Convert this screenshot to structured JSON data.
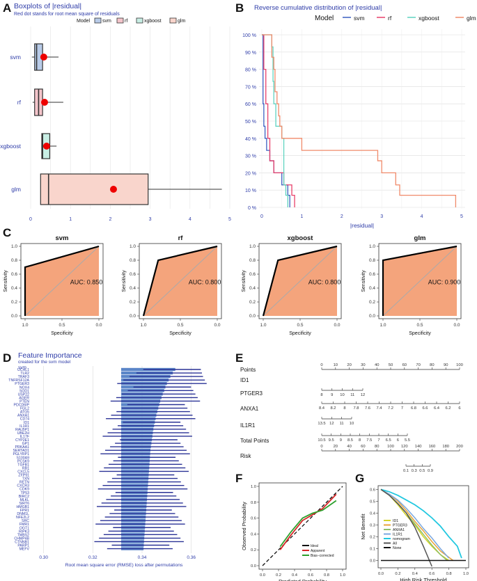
{
  "panel_letters": [
    "A",
    "B",
    "C",
    "D",
    "E",
    "F",
    "G"
  ],
  "colors": {
    "svm": "#3b5fc0",
    "rf": "#e8406a",
    "xgboost": "#5fd3c0",
    "glm": "#f08a6a",
    "accent": "#2e3ca8",
    "roc_fill": "#f4a47c"
  },
  "chart_data": [
    {
      "panel": "A",
      "type": "boxplot",
      "title": "Boxplots of |residual|",
      "subtitle": "Red dot stands for root mean square of residuals",
      "legend_title": "Model",
      "legend": [
        "svm",
        "rf",
        "xgboost",
        "glm"
      ],
      "categories": [
        "svm",
        "rf",
        "xgboost",
        "glm"
      ],
      "x_ticks": [
        "0",
        "1",
        "2",
        "3",
        "4",
        "5"
      ],
      "xlim": [
        0,
        5
      ],
      "boxes": [
        {
          "name": "svm",
          "min": 0.03,
          "q1": 0.1,
          "median": 0.15,
          "q3": 0.3,
          "max": 0.7,
          "rmse": 0.33,
          "fill": "#b8cbe8"
        },
        {
          "name": "rf",
          "min": 0.05,
          "q1": 0.1,
          "median": 0.2,
          "q3": 0.3,
          "max": 0.82,
          "rmse": 0.35,
          "fill": "#f4c5cb"
        },
        {
          "name": "xgboost",
          "min": 0.27,
          "q1": 0.28,
          "median": 0.3,
          "q3": 0.48,
          "max": 0.65,
          "rmse": 0.4,
          "fill": "#c8eee4"
        },
        {
          "name": "glm",
          "min": 0.25,
          "q1": 0.25,
          "median": 0.45,
          "q3": 2.95,
          "max": 4.8,
          "rmse": 2.08,
          "fill": "#f9d5cc"
        }
      ]
    },
    {
      "panel": "B",
      "type": "step",
      "title": "Reverse cumulative distribution of |residual|",
      "legend_title": "Model",
      "xlabel": "|residual|",
      "x_ticks": [
        "0",
        "1",
        "2",
        "3",
        "4",
        "5"
      ],
      "y_ticks": [
        "0 %",
        "10 %",
        "20 %",
        "30 %",
        "40 %",
        "50 %",
        "60 %",
        "70 %",
        "80 %",
        "90 %",
        "100 %"
      ],
      "xlim": [
        0,
        5
      ],
      "ylim": [
        0,
        100
      ],
      "series": [
        {
          "name": "svm",
          "x": [
            0,
            0.03,
            0.05,
            0.08,
            0.12,
            0.2,
            0.3,
            0.5,
            0.6,
            0.65,
            0.7
          ],
          "y": [
            100,
            60,
            47,
            40,
            33,
            27,
            20,
            13,
            13,
            7,
            0
          ]
        },
        {
          "name": "rf",
          "x": [
            0,
            0.05,
            0.1,
            0.15,
            0.2,
            0.3,
            0.4,
            0.55,
            0.65,
            0.75,
            0.82
          ],
          "y": [
            100,
            80,
            60,
            40,
            27,
            20,
            20,
            13,
            13,
            7,
            0
          ]
        },
        {
          "name": "xgboost",
          "x": [
            0,
            0.25,
            0.28,
            0.3,
            0.35,
            0.45,
            0.5,
            0.55,
            0.6,
            0.65
          ],
          "y": [
            100,
            93,
            73,
            60,
            47,
            47,
            40,
            13,
            7,
            0
          ]
        },
        {
          "name": "glm",
          "x": [
            0,
            0.25,
            0.3,
            0.33,
            0.38,
            0.42,
            0.45,
            0.5,
            1.0,
            2.9,
            3.0,
            3.35,
            3.45,
            4.75,
            4.85
          ],
          "y": [
            100,
            87,
            80,
            67,
            60,
            53,
            47,
            40,
            33,
            27,
            20,
            13,
            7,
            7,
            0
          ]
        }
      ]
    },
    {
      "panel": "C",
      "type": "roc",
      "ylabel": "Sensitivity",
      "xlabel": "Specificity",
      "x_ticks": [
        "1.0",
        "0.5",
        "0.0"
      ],
      "y_ticks": [
        "0.0",
        "0.2",
        "0.4",
        "0.6",
        "0.8",
        "1.0"
      ],
      "panels": [
        {
          "title": "svm",
          "auc": "AUC: 0.850",
          "points": [
            [
              1,
              0
            ],
            [
              1,
              0.7
            ],
            [
              0,
              1
            ]
          ]
        },
        {
          "title": "rf",
          "auc": "AUC: 0.800",
          "points": [
            [
              1,
              0
            ],
            [
              0.8,
              0.8
            ],
            [
              0,
              1
            ]
          ]
        },
        {
          "title": "xgboost",
          "auc": "AUC: 0.800",
          "points": [
            [
              1,
              0
            ],
            [
              0.8,
              0.8
            ],
            [
              0,
              1
            ]
          ]
        },
        {
          "title": "glm",
          "auc": "AUC: 0.900",
          "points": [
            [
              1,
              0
            ],
            [
              1,
              0.8
            ],
            [
              0,
              1
            ]
          ]
        }
      ]
    },
    {
      "panel": "D",
      "type": "bar",
      "title": "Feature Importance",
      "subtitle": "created for the svm model",
      "model_label": "svm",
      "xlabel": "Root mean square error (RMSE) loss after permutations",
      "x_ticks": [
        "0.30",
        "0.32",
        "0.34",
        "0.36"
      ],
      "xlim": [
        0.295,
        0.37
      ],
      "baseline": 0.3315,
      "features": [
        "UCHL1",
        "TLR2",
        "TRAF3",
        "TNFRSF12A",
        "PTGER3",
        "NOX4",
        "SOD1",
        "USP22",
        "AGER",
        "PTEN",
        "PDCD6IP",
        "FGL2",
        "ATG5",
        "ANXA1",
        "CD74",
        "ID1",
        "IL1R1",
        "RALBP1",
        "UBE2H",
        "IL17F",
        "CYP2E1",
        "GP1",
        "PRKAA1",
        "SERTAD1",
        "PGLYRP1",
        "S100A9",
        "PCSK9",
        "TGFB1",
        "RB1",
        "CXCL5",
        "ZFP91",
        "TXN",
        "RETN",
        "CXCR3",
        "CDK9",
        "TP53",
        "BIRC2",
        "MLKL",
        "SIRT6",
        "HMGB1",
        "FPR1",
        "DNM1L",
        "NFE2L2",
        "SRC",
        "FMR1",
        "OGT1",
        "RIPK3",
        "TMBS2",
        "CHMP4B",
        "CTNNB1",
        "PARP1",
        "MEFV"
      ],
      "values": [
        0.3535,
        0.3525,
        0.3515,
        0.3508,
        0.3501,
        0.3495,
        0.349,
        0.3484,
        0.3479,
        0.3474,
        0.347,
        0.3466,
        0.3462,
        0.3458,
        0.3455,
        0.3452,
        0.3449,
        0.3446,
        0.3444,
        0.3442,
        0.344,
        0.3438,
        0.3436,
        0.3434,
        0.3433,
        0.3432,
        0.3431,
        0.343,
        0.3429,
        0.3428,
        0.3427,
        0.3426,
        0.3425,
        0.3424,
        0.3423,
        0.3422,
        0.3421,
        0.342,
        0.3419,
        0.3418,
        0.3417,
        0.3416,
        0.3415,
        0.3414,
        0.3413,
        0.3412,
        0.3411,
        0.341,
        0.3409,
        0.3408,
        0.3407,
        0.3406
      ]
    },
    {
      "panel": "E",
      "type": "nomogram",
      "rows": [
        {
          "label": "Points",
          "ticks": [
            "0",
            "10",
            "20",
            "30",
            "40",
            "50",
            "60",
            "70",
            "80",
            "90",
            "100"
          ]
        },
        {
          "label": "ID1",
          "ticks": [
            "8",
            "9",
            "10",
            "11",
            "12"
          ]
        },
        {
          "label": "PTGER3",
          "ticks": [
            "8.4",
            "8.2",
            "8",
            "7.8",
            "7.6",
            "7.4",
            "7.2",
            "7",
            "6.8",
            "6.6",
            "6.4",
            "6.2",
            "6"
          ]
        },
        {
          "label": "ANXA1",
          "ticks": [
            "13.5",
            "12",
            "11",
            "10"
          ]
        },
        {
          "label": "IL1R1",
          "ticks": [
            "10.5",
            "9.5",
            "9",
            "8.5",
            "8",
            "7.5",
            "7",
            "6.5",
            "6",
            "5.5"
          ]
        },
        {
          "label": "Total Points",
          "ticks": [
            "0",
            "20",
            "40",
            "60",
            "80",
            "100",
            "120",
            "140",
            "160",
            "180",
            "200"
          ]
        },
        {
          "label": "Risk",
          "ticks": [
            "0.1",
            "0.3",
            "0.5",
            "0.9"
          ]
        }
      ]
    },
    {
      "panel": "F",
      "type": "line",
      "xlabel": "Predicted Probability",
      "ylabel": "Observed Probability",
      "x_ticks": [
        "0.0",
        "0.2",
        "0.4",
        "0.6",
        "0.8",
        "1.0"
      ],
      "y_ticks": [
        "0.0",
        "0.2",
        "0.4",
        "0.6",
        "0.8",
        "1.0"
      ],
      "xlim": [
        0,
        1
      ],
      "ylim": [
        0,
        1
      ],
      "legend": [
        "Ideal",
        "Apparent",
        "Bias−corrected"
      ],
      "series": [
        {
          "name": "Ideal",
          "color": "#111111",
          "dashed": true,
          "x": [
            0,
            1
          ],
          "y": [
            0,
            1
          ]
        },
        {
          "name": "Apparent",
          "color": "#d62728",
          "x": [
            0.22,
            0.35,
            0.5,
            0.62,
            0.75,
            0.92
          ],
          "y": [
            0.2,
            0.38,
            0.57,
            0.64,
            0.72,
            0.9
          ]
        },
        {
          "name": "Bias−corrected",
          "color": "#2ca02c",
          "x": [
            0.22,
            0.35,
            0.5,
            0.62,
            0.75,
            0.92
          ],
          "y": [
            0.24,
            0.42,
            0.6,
            0.66,
            0.7,
            0.82
          ]
        }
      ]
    },
    {
      "panel": "G",
      "type": "line",
      "xlabel": "High Risk Threshold",
      "ylabel": "Net Benefit",
      "x_ticks": [
        "0.0",
        "0.2",
        "0.4",
        "0.6",
        "0.8",
        "1.0"
      ],
      "y_ticks": [
        "0.0",
        "0.1",
        "0.2",
        "0.3",
        "0.4",
        "0.5",
        "0.6"
      ],
      "xlim": [
        0,
        1
      ],
      "ylim": [
        -0.05,
        0.62
      ],
      "legend": [
        "ID1",
        "PTGER3",
        "ANXA1",
        "IL1R1",
        "nomogram",
        "All",
        "None"
      ],
      "series": [
        {
          "name": "ID1",
          "color": "#d4d42a",
          "x": [
            0,
            0.1,
            0.2,
            0.3,
            0.4,
            0.5,
            0.6,
            0.7,
            0.8
          ],
          "y": [
            0.6,
            0.55,
            0.47,
            0.38,
            0.3,
            0.2,
            0.12,
            0.05,
            0.0
          ]
        },
        {
          "name": "PTGER3",
          "color": "#e8a33a",
          "x": [
            0,
            0.1,
            0.2,
            0.3,
            0.4,
            0.5,
            0.6,
            0.7,
            0.85
          ],
          "y": [
            0.6,
            0.56,
            0.5,
            0.42,
            0.33,
            0.25,
            0.16,
            0.08,
            0.0
          ]
        },
        {
          "name": "ANXA1",
          "color": "#8fbf6a",
          "x": [
            0,
            0.1,
            0.2,
            0.3,
            0.4,
            0.5,
            0.6,
            0.7,
            0.78
          ],
          "y": [
            0.6,
            0.55,
            0.48,
            0.4,
            0.31,
            0.22,
            0.13,
            0.05,
            0.0
          ]
        },
        {
          "name": "IL1R1",
          "color": "#7aa7e0",
          "x": [
            0,
            0.1,
            0.2,
            0.3,
            0.4,
            0.5,
            0.6,
            0.7,
            0.8
          ],
          "y": [
            0.6,
            0.56,
            0.51,
            0.44,
            0.36,
            0.27,
            0.19,
            0.1,
            0.02
          ]
        },
        {
          "name": "nomogram",
          "color": "#22c8e0",
          "x": [
            0,
            0.1,
            0.2,
            0.3,
            0.4,
            0.5,
            0.6,
            0.7,
            0.8,
            0.9,
            0.95
          ],
          "y": [
            0.6,
            0.58,
            0.55,
            0.51,
            0.47,
            0.42,
            0.36,
            0.29,
            0.2,
            0.12,
            0.02
          ]
        },
        {
          "name": "All",
          "color": "#555555",
          "x": [
            0,
            0.1,
            0.2,
            0.3,
            0.4,
            0.5,
            0.6
          ],
          "y": [
            0.6,
            0.55,
            0.48,
            0.4,
            0.28,
            0.12,
            -0.05
          ]
        },
        {
          "name": "None",
          "color": "#111111",
          "x": [
            0,
            1
          ],
          "y": [
            0,
            0
          ]
        }
      ]
    }
  ]
}
